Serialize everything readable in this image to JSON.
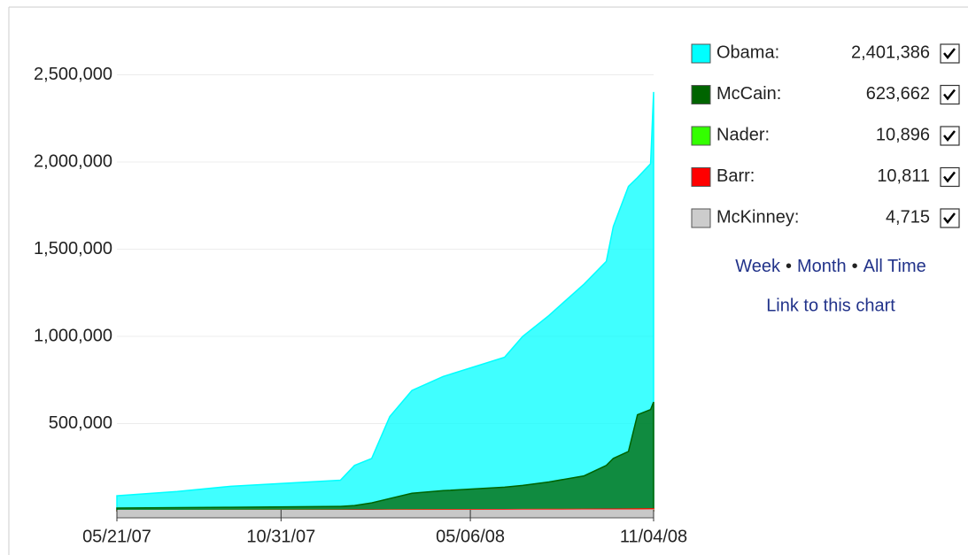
{
  "chart_data": {
    "type": "area",
    "x": [
      "2007-05-21",
      "2007-07-20",
      "2007-09-11",
      "2007-12-29",
      "2008-01-12",
      "2008-01-29",
      "2008-02-16",
      "2008-03-09",
      "2008-04-09",
      "2008-06-09",
      "2008-06-27",
      "2008-07-23",
      "2008-08-27",
      "2008-09-18",
      "2008-09-25",
      "2008-10-10",
      "2008-10-19",
      "2008-11-01",
      "2008-11-04"
    ],
    "series": [
      {
        "name": "Obama:",
        "color": "#00ffff",
        "legend_value": {
          "value": 2401386,
          "label": "2,401,386"
        },
        "values": [
          86000,
          110000,
          140000,
          175000,
          260000,
          300000,
          540000,
          690000,
          770000,
          880000,
          1000000,
          1120000,
          1300000,
          1430000,
          1630000,
          1860000,
          1910000,
          1990000,
          2401386
        ]
      },
      {
        "name": "McCain:",
        "color": "#006400",
        "legend_value": {
          "value": 623662,
          "label": "623,662"
        },
        "values": [
          15000,
          18000,
          20000,
          25000,
          30000,
          45000,
          70000,
          100000,
          115000,
          135000,
          145000,
          165000,
          200000,
          260000,
          300000,
          340000,
          550000,
          580000,
          623662
        ]
      },
      {
        "name": "Nader:",
        "color": "#33ff00",
        "legend_value": {
          "value": 10896,
          "label": "10,896"
        },
        "values": [
          1000,
          1500,
          2000,
          3000,
          3500,
          4000,
          4500,
          5000,
          5500,
          6500,
          7000,
          7500,
          8000,
          8500,
          9000,
          9500,
          10000,
          10500,
          10896
        ]
      },
      {
        "name": "Barr:",
        "color": "#ff0000",
        "legend_value": {
          "value": 10811,
          "label": "10,811"
        },
        "values": [
          1000,
          1500,
          2000,
          3000,
          3500,
          4000,
          4500,
          5000,
          5500,
          6500,
          7000,
          7500,
          8000,
          8500,
          9000,
          9500,
          10000,
          10500,
          10811
        ]
      },
      {
        "name": "McKinney:",
        "color": "#cccccc",
        "legend_value": {
          "value": 4715,
          "label": "4,715"
        },
        "values": [
          500,
          700,
          900,
          1200,
          1400,
          1600,
          1800,
          2000,
          2200,
          2600,
          2800,
          3000,
          3300,
          3600,
          3800,
          4100,
          4300,
          4500,
          4715
        ]
      }
    ],
    "xlim": [
      "2007-05-21",
      "2008-11-04"
    ],
    "xticks": [
      {
        "value": "2007-05-21",
        "label": "05/21/07"
      },
      {
        "value": "2007-10-31",
        "label": "10/31/07"
      },
      {
        "value": "2008-05-06",
        "label": "05/06/08"
      },
      {
        "value": "2008-11-04",
        "label": "11/04/08"
      }
    ],
    "ylim": [
      0,
      2800000
    ],
    "yticks": [
      {
        "value": 500000,
        "label": "500,000"
      },
      {
        "value": 1000000,
        "label": "1,000,000"
      },
      {
        "value": 1500000,
        "label": "1,500,000"
      },
      {
        "value": 2000000,
        "label": "2,000,000"
      },
      {
        "value": 2500000,
        "label": "2,500,000"
      }
    ],
    "grid": true,
    "links": [
      "Week",
      "Month",
      "All Time"
    ],
    "separator": "•",
    "permalink": "Link to this chart"
  }
}
